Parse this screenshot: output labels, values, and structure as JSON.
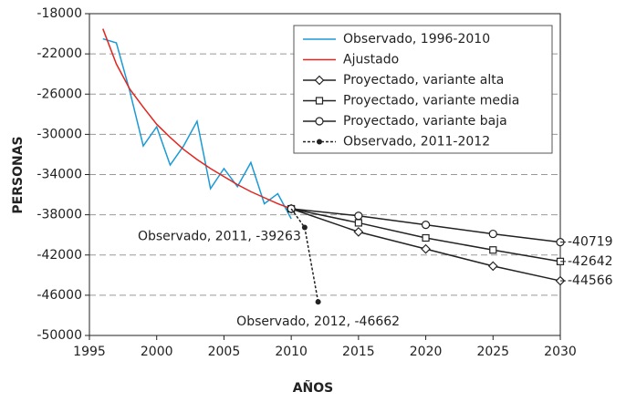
{
  "chart_data": {
    "type": "line",
    "x_label": "AÑOS",
    "y_label": "PERSONAS",
    "xlim": [
      1995,
      2030
    ],
    "xticks": [
      1995,
      2000,
      2005,
      2010,
      2015,
      2020,
      2025,
      2030
    ],
    "ylim": [
      -50000,
      -18000
    ],
    "yticks": [
      -50000,
      -46000,
      -42000,
      -38000,
      -34000,
      -30000,
      -26000,
      -22000,
      -18000
    ],
    "grid": true,
    "legend": "upper right",
    "series": [
      {
        "name": "Observado, 1996-2010",
        "color": "#1b9ad6",
        "marker": "none",
        "dash": false,
        "x": [
          1996,
          1997,
          1998,
          1999,
          2000,
          2001,
          2002,
          2003,
          2004,
          2005,
          2006,
          2007,
          2008,
          2009,
          2010
        ],
        "values": [
          -20500,
          -20900,
          -25700,
          -31150,
          -29250,
          -33050,
          -31150,
          -28700,
          -35400,
          -33400,
          -35200,
          -32800,
          -36900,
          -35900,
          -38400
        ]
      },
      {
        "name": "Ajustado",
        "color": "#e2261f",
        "marker": "none",
        "dash": false,
        "x": [
          1996,
          1997,
          1998,
          1999,
          2000,
          2001,
          2002,
          2003,
          2004,
          2005,
          2006,
          2007,
          2008,
          2009,
          2010
        ],
        "values": [
          -19500,
          -23000,
          -25500,
          -27300,
          -29000,
          -30300,
          -31500,
          -32500,
          -33400,
          -34200,
          -35000,
          -35700,
          -36300,
          -36900,
          -37400
        ]
      },
      {
        "name": "Proyectado, variante alta",
        "color": "#222222",
        "marker": "diamond",
        "dash": false,
        "x": [
          2010,
          2015,
          2020,
          2025,
          2030
        ],
        "values": [
          -37400,
          -39700,
          -41400,
          -43100,
          -44566
        ]
      },
      {
        "name": "Proyectado, variante media",
        "color": "#222222",
        "marker": "square",
        "dash": false,
        "x": [
          2010,
          2015,
          2020,
          2025,
          2030
        ],
        "values": [
          -37400,
          -38800,
          -40300,
          -41500,
          -42642
        ]
      },
      {
        "name": "Proyectado, variante baja",
        "color": "#222222",
        "marker": "circle",
        "dash": false,
        "x": [
          2010,
          2015,
          2020,
          2025,
          2030
        ],
        "values": [
          -37400,
          -38100,
          -39000,
          -39900,
          -40719
        ]
      },
      {
        "name": "Observado, 2011-2012",
        "color": "#222222",
        "marker": "dot",
        "dash": true,
        "x": [
          2010,
          2011,
          2012
        ],
        "values": [
          -37400,
          -39263,
          -46662
        ],
        "value_labels": [
          null,
          "Observado, 2011, -39263",
          "Observado, 2012, -46662"
        ]
      }
    ]
  }
}
